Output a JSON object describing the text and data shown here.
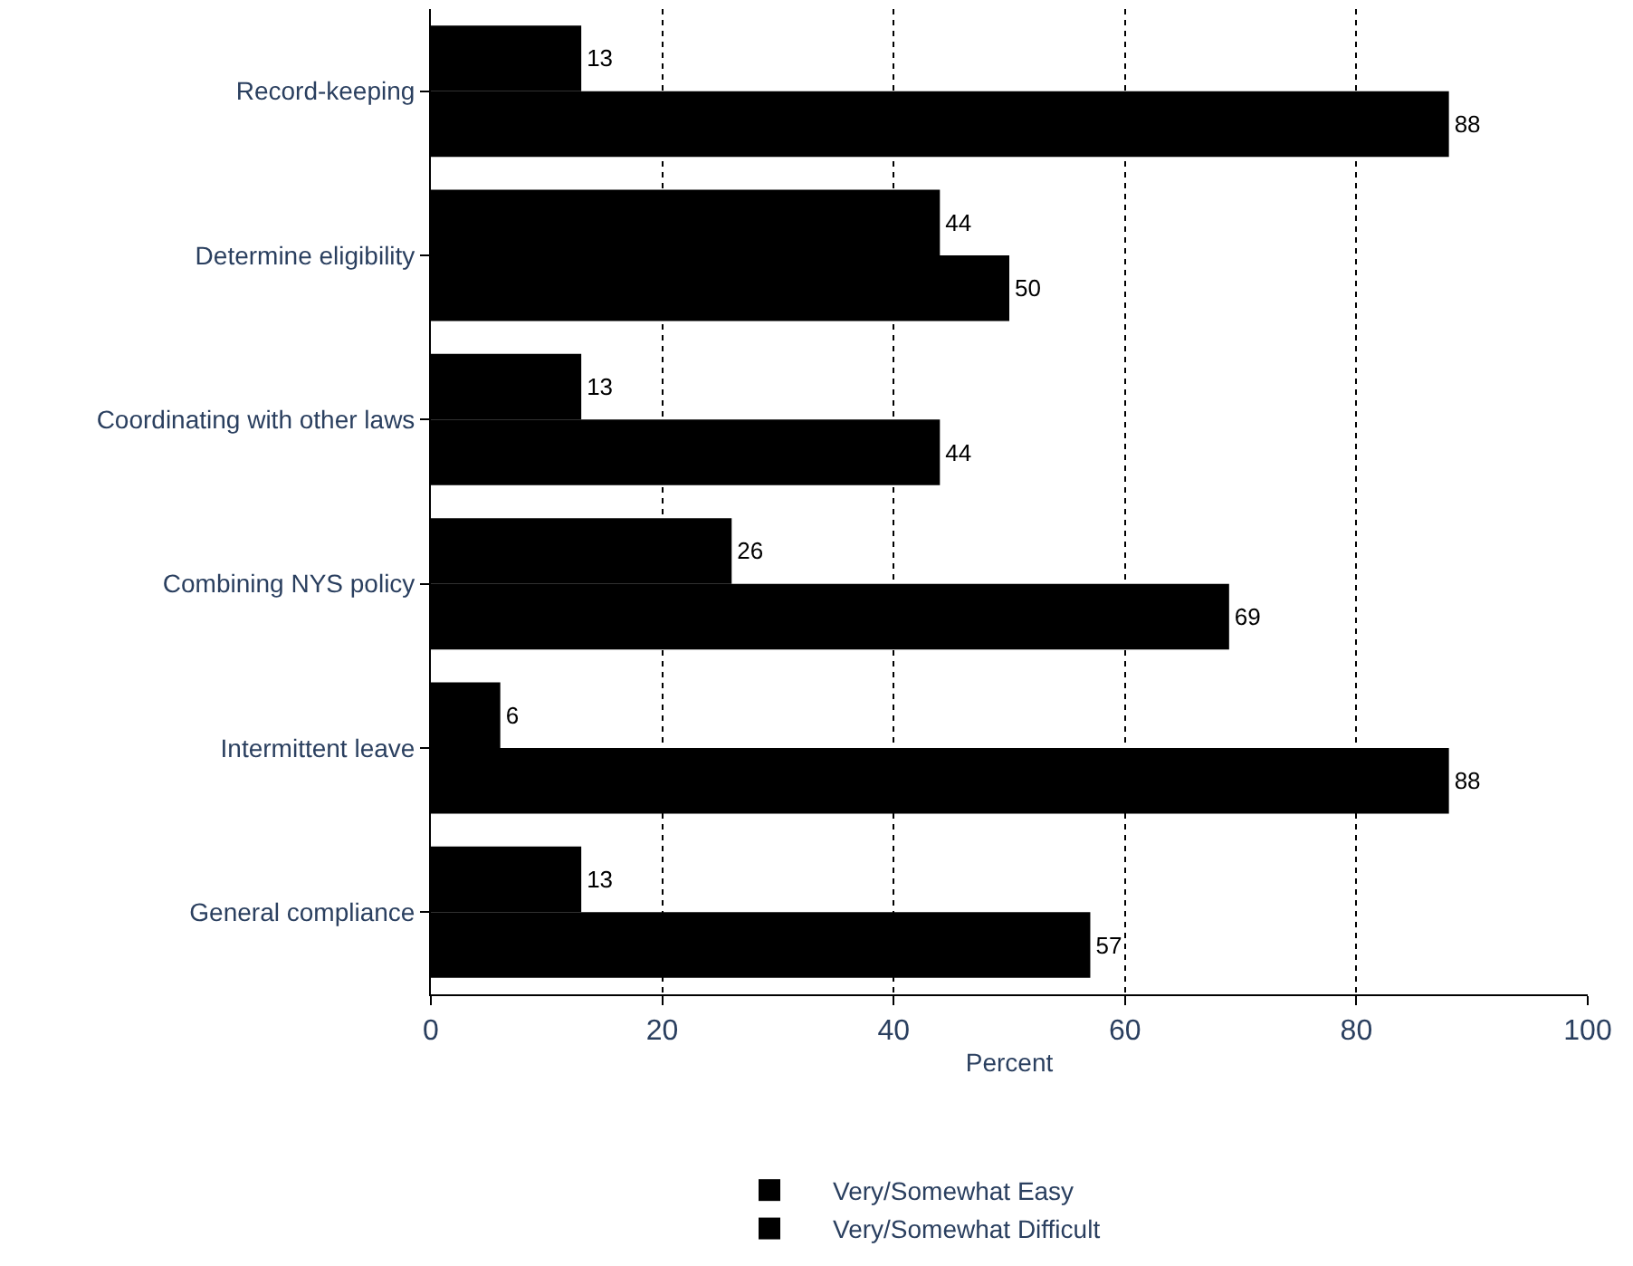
{
  "chart_data": {
    "type": "bar",
    "orientation": "horizontal",
    "xlabel": "Percent",
    "categories": [
      "Record-keeping",
      "Determine eligibility",
      "Coordinating with other laws",
      "Combining NYS policy",
      "Intermittent leave",
      "General compliance"
    ],
    "series": [
      {
        "name": "Very/Somewhat Easy",
        "color": "#000000",
        "values": [
          13,
          44,
          13,
          26,
          6,
          13
        ]
      },
      {
        "name": "Very/Somewhat Difficult",
        "color": "#000000",
        "values": [
          88,
          50,
          44,
          69,
          88,
          57
        ]
      }
    ],
    "xlim": [
      0,
      100
    ],
    "xticks": [
      0,
      20,
      40,
      60,
      80,
      100
    ],
    "grid": "x",
    "legend": "bottom",
    "data_labels": true
  }
}
